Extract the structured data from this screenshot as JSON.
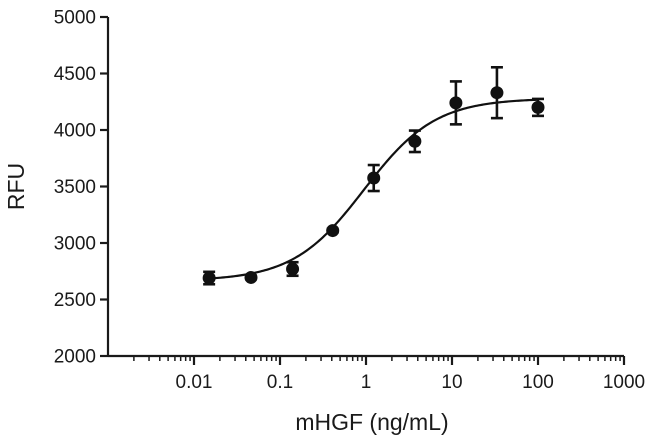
{
  "chart_data": {
    "type": "scatter",
    "title": "",
    "xlabel": "mHGF (ng/mL)",
    "ylabel": "RFU",
    "xscale": "log",
    "xlim": [
      0.001,
      1000
    ],
    "ylim": [
      2000,
      5000
    ],
    "xticks": [
      0.01,
      0.1,
      1,
      10,
      100,
      1000
    ],
    "xtick_labels": [
      "0.01",
      "0.1",
      "1",
      "10",
      "100",
      "1000"
    ],
    "yticks": [
      2000,
      2500,
      3000,
      3500,
      4000,
      4500,
      5000
    ],
    "ytick_labels": [
      "2000",
      "2500",
      "3000",
      "3500",
      "4000",
      "4500",
      "5000"
    ],
    "grid": false,
    "series": [
      {
        "x": [
          0.015,
          0.046,
          0.14,
          0.41,
          1.23,
          3.7,
          11.1,
          33.3,
          100
        ],
        "y": [
          2690,
          2695,
          2770,
          3110,
          3575,
          3900,
          4240,
          4330,
          4200
        ],
        "yerr": [
          55,
          15,
          60,
          15,
          115,
          95,
          190,
          225,
          75
        ]
      }
    ],
    "fit": {
      "type": "four-parameter logistic",
      "bottom": 2665,
      "top": 4280,
      "ec50": 0.95,
      "hill": 1.05
    }
  }
}
